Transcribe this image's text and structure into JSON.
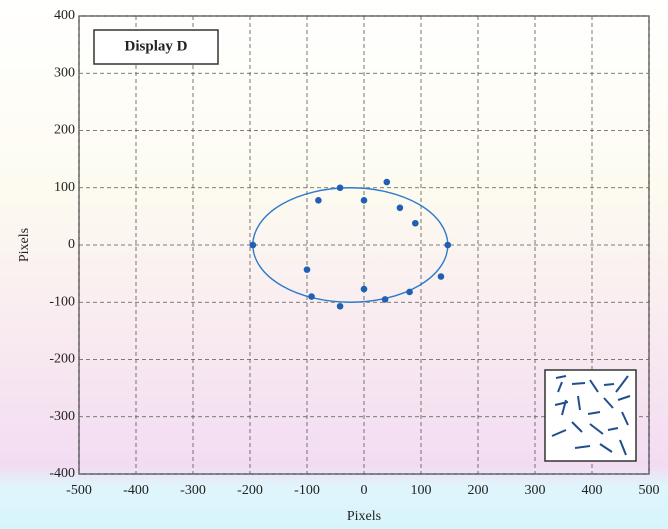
{
  "chart_data": {
    "type": "scatter",
    "title": "Display D",
    "xlabel": "Pixels",
    "ylabel": "Pixels",
    "xlim": [
      -500,
      500
    ],
    "ylim": [
      -400,
      400
    ],
    "xticks": [
      -500,
      -400,
      -300,
      -200,
      -100,
      0,
      100,
      200,
      300,
      400,
      500
    ],
    "yticks": [
      -400,
      -300,
      -200,
      -100,
      0,
      100,
      200,
      300,
      400
    ],
    "grid": true,
    "series": [
      {
        "color": "#1f5fb4",
        "x": [
          -195,
          -100,
          -92,
          -80,
          -42,
          -42,
          0,
          0,
          40,
          37,
          63,
          80,
          90,
          135,
          147
        ],
        "y": [
          0,
          -43,
          -90,
          78,
          100,
          -107,
          78,
          -77,
          110,
          -95,
          65,
          -82,
          38,
          -55,
          0
        ]
      }
    ],
    "ellipse": {
      "color": "#2f7bc8",
      "cx": -24,
      "cy": 0,
      "rx": 171,
      "ry": 100
    }
  }
}
